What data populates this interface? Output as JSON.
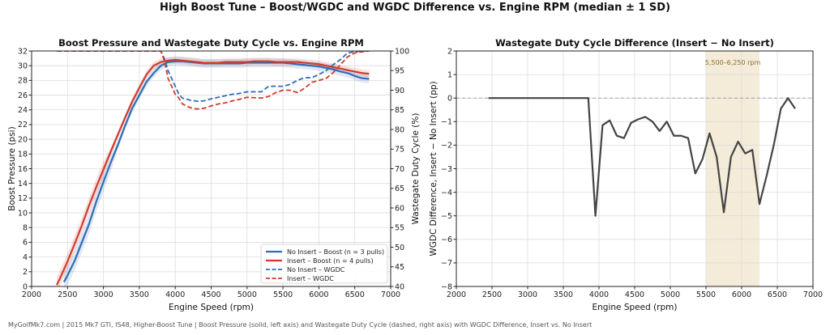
{
  "suptitle": "High Boost Tune – Boost/WGDC and WGDC Difference vs. Engine RPM (median ± 1 SD)",
  "footer": "MyGolfMk7.com | 2015 Mk7 GTI, IS48, Higher-Boost Tune | Boost Pressure (solid, left axis) and Wastegate Duty Cycle (dashed, right axis) with WGDC Difference, Insert vs. No Insert",
  "colors": {
    "no_insert": "#2f6db5",
    "insert": "#d13b2c",
    "diff": "#444444",
    "band": "#f2e8d2"
  },
  "chart_data": [
    {
      "type": "line",
      "title": "Boost Pressure and Wastegate Duty Cycle vs. Engine RPM",
      "xlabel": "Engine Speed (rpm)",
      "ylabel": "Boost Pressure (psi)",
      "y2label": "Wastegate Duty Cycle (%)",
      "xlim": [
        2000,
        7000
      ],
      "ylim": [
        0,
        32
      ],
      "y2lim": [
        40,
        100
      ],
      "xticks": [
        2000,
        2500,
        3000,
        3500,
        4000,
        4500,
        5000,
        5500,
        6000,
        6500,
        7000
      ],
      "yticks": [
        0,
        2,
        4,
        6,
        8,
        10,
        12,
        14,
        16,
        18,
        20,
        22,
        24,
        26,
        28,
        30,
        32
      ],
      "y2ticks": [
        40,
        45,
        50,
        55,
        60,
        65,
        70,
        75,
        80,
        85,
        90,
        95,
        100
      ],
      "grid": true,
      "legend": "bottom-right",
      "series": [
        {
          "name": "No Insert – Boost (n = 3 pulls)",
          "axis": "left",
          "style": "solid",
          "color_key": "no_insert",
          "x": [
            2450,
            2500,
            2600,
            2700,
            2800,
            2900,
            3000,
            3100,
            3200,
            3300,
            3400,
            3500,
            3600,
            3700,
            3800,
            3900,
            4000,
            4100,
            4200,
            4300,
            4400,
            4500,
            4600,
            4700,
            4800,
            4900,
            5000,
            5100,
            5200,
            5300,
            5400,
            5500,
            5600,
            5700,
            5800,
            5900,
            6000,
            6100,
            6200,
            6300,
            6400,
            6500,
            6600,
            6700
          ],
          "y": [
            0.6,
            1.5,
            3.5,
            6.0,
            8.5,
            11.5,
            14.2,
            16.8,
            19.2,
            21.8,
            24.2,
            26.0,
            27.8,
            29.0,
            30.0,
            30.5,
            30.6,
            30.6,
            30.5,
            30.4,
            30.3,
            30.3,
            30.3,
            30.3,
            30.3,
            30.3,
            30.4,
            30.4,
            30.4,
            30.4,
            30.4,
            30.4,
            30.3,
            30.2,
            30.1,
            30.0,
            29.9,
            29.7,
            29.5,
            29.2,
            29.0,
            28.6,
            28.3,
            28.2
          ],
          "sd": 0.6
        },
        {
          "name": "Insert – Boost (n = 4 pulls)",
          "axis": "left",
          "style": "solid",
          "color_key": "insert",
          "x": [
            2350,
            2400,
            2500,
            2600,
            2700,
            2800,
            2900,
            3000,
            3100,
            3200,
            3300,
            3400,
            3500,
            3600,
            3700,
            3800,
            3900,
            4000,
            4100,
            4200,
            4300,
            4400,
            4500,
            4600,
            4700,
            4800,
            4900,
            5000,
            5100,
            5200,
            5300,
            5400,
            5500,
            5600,
            5700,
            5800,
            5900,
            6000,
            6100,
            6200,
            6300,
            6400,
            6500,
            6600,
            6700
          ],
          "y": [
            0.2,
            1.2,
            3.4,
            5.8,
            8.3,
            11.0,
            13.5,
            15.9,
            18.3,
            20.6,
            22.9,
            25.1,
            27.0,
            28.8,
            30.0,
            30.5,
            30.7,
            30.8,
            30.7,
            30.6,
            30.5,
            30.4,
            30.4,
            30.4,
            30.5,
            30.5,
            30.5,
            30.5,
            30.6,
            30.6,
            30.6,
            30.5,
            30.5,
            30.5,
            30.5,
            30.4,
            30.3,
            30.2,
            30.0,
            29.8,
            29.6,
            29.4,
            29.2,
            29.0,
            28.9
          ],
          "sd": 0.5
        },
        {
          "name": "No Insert – WGDC",
          "axis": "right",
          "style": "dashed",
          "color_key": "no_insert",
          "x": [
            2350,
            2500,
            3000,
            3500,
            3800,
            3850,
            3900,
            4000,
            4050,
            4100,
            4200,
            4300,
            4400,
            4500,
            4600,
            4700,
            4800,
            4900,
            5000,
            5100,
            5200,
            5300,
            5400,
            5500,
            5600,
            5700,
            5800,
            5900,
            6000,
            6100,
            6200,
            6300,
            6400,
            6500,
            6600,
            6700
          ],
          "y": [
            100,
            100,
            100,
            100,
            100,
            98,
            95,
            91,
            89,
            88,
            87.5,
            87.2,
            87.3,
            87.8,
            88.2,
            88.6,
            89.0,
            89.2,
            89.6,
            89.6,
            89.6,
            91.0,
            91.0,
            91.0,
            91.5,
            92.5,
            93.2,
            93.2,
            94.0,
            95.0,
            96.5,
            97.8,
            99.5,
            99.8,
            100,
            100
          ]
        },
        {
          "name": "Insert – WGDC",
          "axis": "right",
          "style": "dashed",
          "color_key": "insert",
          "x": [
            2350,
            2500,
            3000,
            3500,
            3800,
            3850,
            3900,
            4000,
            4050,
            4100,
            4200,
            4300,
            4400,
            4500,
            4600,
            4700,
            4800,
            4900,
            5000,
            5100,
            5200,
            5300,
            5400,
            5500,
            5600,
            5700,
            5800,
            5900,
            6000,
            6100,
            6200,
            6300,
            6400,
            6500,
            6600,
            6700
          ],
          "y": [
            100,
            100,
            100,
            100,
            100,
            97.5,
            93,
            89,
            88,
            86.5,
            85.6,
            85.2,
            85.4,
            86.0,
            86.5,
            86.8,
            87.3,
            87.7,
            88.2,
            88.1,
            88.0,
            88.4,
            89.4,
            90.0,
            90.0,
            89.4,
            90.5,
            92.0,
            92.5,
            93.0,
            94.5,
            96.5,
            98.5,
            99.5,
            99.8,
            100
          ]
        }
      ]
    },
    {
      "type": "line",
      "title": "Wastegate Duty Cycle Difference (Insert − No Insert)",
      "xlabel": "Engine Speed (rpm)",
      "ylabel": "WGDC Difference, Insert − No Insert (pp)",
      "xlim": [
        2000,
        7000
      ],
      "ylim": [
        -8,
        2
      ],
      "xticks": [
        2000,
        2500,
        3000,
        3500,
        4000,
        4500,
        5000,
        5500,
        6000,
        6500,
        7000
      ],
      "yticks": [
        -8,
        -7,
        -6,
        -5,
        -4,
        -3,
        -2,
        -1,
        0,
        1,
        2
      ],
      "grid": true,
      "reference_line": 0,
      "band": {
        "x0": 5500,
        "x1": 6250,
        "label": "5,500–6,250 rpm"
      },
      "series": [
        {
          "color_key": "diff",
          "style": "solid",
          "x": [
            2450,
            3850,
            3950,
            4050,
            4150,
            4250,
            4350,
            4450,
            4550,
            4650,
            4750,
            4850,
            4950,
            5050,
            5150,
            5250,
            5350,
            5450,
            5550,
            5650,
            5750,
            5850,
            5950,
            6050,
            6150,
            6250,
            6350,
            6450,
            6550,
            6650,
            6750
          ],
          "y": [
            0,
            0,
            -5.0,
            -1.15,
            -0.95,
            -1.6,
            -1.7,
            -1.05,
            -0.9,
            -0.8,
            -1.0,
            -1.4,
            -1.0,
            -1.6,
            -1.6,
            -1.7,
            -3.2,
            -2.6,
            -1.5,
            -2.5,
            -4.85,
            -2.5,
            -1.85,
            -2.35,
            -2.2,
            -4.5,
            -3.3,
            -2.0,
            -0.45,
            0.0,
            -0.45
          ]
        }
      ]
    }
  ]
}
